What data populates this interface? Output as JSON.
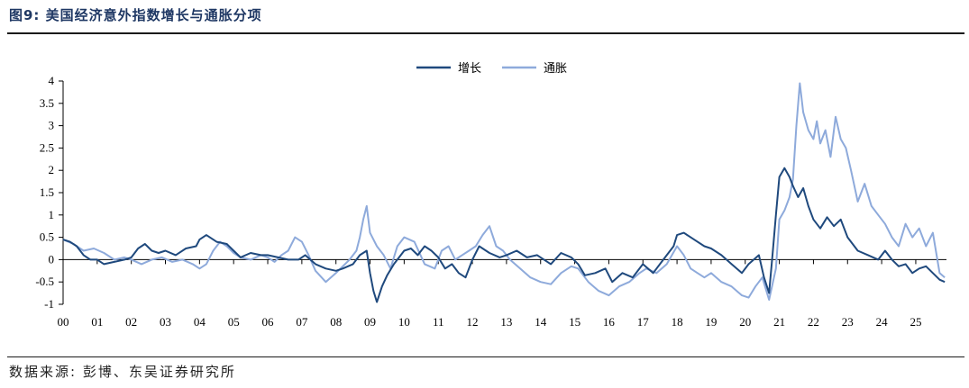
{
  "figure": {
    "title": "图9:  美国经济意外指数增长与通胀分项",
    "source": "数据来源:  彭博、东吴证券研究所"
  },
  "chart_data": {
    "type": "line",
    "title": "",
    "xlabel": "",
    "ylabel": "",
    "x_ticks": [
      "00",
      "01",
      "02",
      "03",
      "04",
      "05",
      "06",
      "07",
      "08",
      "09",
      "10",
      "11",
      "12",
      "13",
      "14",
      "15",
      "16",
      "17",
      "18",
      "19",
      "20",
      "21",
      "22",
      "23",
      "24",
      "25"
    ],
    "y_ticks": [
      "4",
      "3.5",
      "3",
      "2.5",
      "2",
      "1.5",
      "1",
      "0.5",
      "0",
      "-0.5",
      "-1"
    ],
    "xlim": [
      2000.0,
      2025.9
    ],
    "ylim": [
      -1,
      4
    ],
    "grid": false,
    "legend_position": "top-center",
    "series": [
      {
        "name": "增长",
        "color": "#1f497d",
        "x": [
          2000.0,
          2000.2,
          2000.4,
          2000.6,
          2000.8,
          2001.0,
          2001.2,
          2001.5,
          2001.8,
          2002.0,
          2002.2,
          2002.4,
          2002.6,
          2002.8,
          2003.0,
          2003.3,
          2003.6,
          2003.9,
          2004.0,
          2004.2,
          2004.5,
          2004.8,
          2005.0,
          2005.2,
          2005.5,
          2005.8,
          2006.0,
          2006.3,
          2006.6,
          2006.9,
          2007.1,
          2007.4,
          2007.7,
          2008.0,
          2008.2,
          2008.5,
          2008.7,
          2008.9,
          2009.0,
          2009.1,
          2009.2,
          2009.35,
          2009.5,
          2009.7,
          2010.0,
          2010.2,
          2010.4,
          2010.6,
          2010.8,
          2011.0,
          2011.2,
          2011.4,
          2011.6,
          2011.8,
          2012.0,
          2012.2,
          2012.5,
          2012.8,
          2013.0,
          2013.3,
          2013.6,
          2013.9,
          2014.1,
          2014.3,
          2014.6,
          2014.9,
          2015.1,
          2015.3,
          2015.6,
          2015.9,
          2016.1,
          2016.4,
          2016.7,
          2017.0,
          2017.3,
          2017.6,
          2017.9,
          2018.0,
          2018.2,
          2018.5,
          2018.8,
          2019.0,
          2019.3,
          2019.6,
          2019.9,
          2020.1,
          2020.25,
          2020.4,
          2020.55,
          2020.7,
          2020.8,
          2020.9,
          2021.0,
          2021.15,
          2021.3,
          2021.4,
          2021.55,
          2021.7,
          2021.85,
          2022.0,
          2022.2,
          2022.4,
          2022.6,
          2022.8,
          2023.0,
          2023.3,
          2023.6,
          2023.9,
          2024.1,
          2024.3,
          2024.5,
          2024.7,
          2024.9,
          2025.1,
          2025.3,
          2025.5,
          2025.7,
          2025.85
        ],
        "values": [
          0.45,
          0.4,
          0.3,
          0.1,
          0.0,
          0.0,
          -0.1,
          -0.05,
          0.0,
          0.05,
          0.25,
          0.35,
          0.2,
          0.15,
          0.2,
          0.1,
          0.25,
          0.3,
          0.45,
          0.55,
          0.4,
          0.35,
          0.2,
          0.05,
          0.15,
          0.1,
          0.1,
          0.05,
          0.0,
          0.0,
          0.1,
          -0.1,
          -0.2,
          -0.25,
          -0.2,
          -0.1,
          0.1,
          0.2,
          -0.3,
          -0.7,
          -0.95,
          -0.6,
          -0.35,
          -0.1,
          0.2,
          0.25,
          0.1,
          0.3,
          0.2,
          0.05,
          -0.2,
          -0.1,
          -0.3,
          -0.4,
          0.0,
          0.3,
          0.15,
          0.05,
          0.1,
          0.2,
          0.05,
          0.1,
          0.0,
          -0.1,
          0.15,
          0.05,
          -0.1,
          -0.35,
          -0.3,
          -0.2,
          -0.5,
          -0.3,
          -0.4,
          -0.1,
          -0.3,
          0.0,
          0.3,
          0.55,
          0.6,
          0.45,
          0.3,
          0.25,
          0.1,
          -0.1,
          -0.3,
          -0.1,
          0.0,
          0.1,
          -0.4,
          -0.75,
          0.1,
          1.0,
          1.85,
          2.05,
          1.85,
          1.65,
          1.4,
          1.6,
          1.2,
          0.9,
          0.7,
          0.95,
          0.75,
          0.9,
          0.5,
          0.2,
          0.1,
          0.0,
          0.2,
          0.0,
          -0.15,
          -0.1,
          -0.3,
          -0.2,
          -0.15,
          -0.3,
          -0.45,
          -0.5
        ]
      },
      {
        "name": "通胀",
        "color": "#8eaadb",
        "x": [
          2000.0,
          2000.3,
          2000.6,
          2000.9,
          2001.2,
          2001.5,
          2001.8,
          2002.0,
          2002.3,
          2002.6,
          2002.9,
          2003.2,
          2003.5,
          2003.8,
          2004.0,
          2004.2,
          2004.4,
          2004.6,
          2004.8,
          2005.0,
          2005.2,
          2005.5,
          2005.8,
          2006.0,
          2006.2,
          2006.4,
          2006.6,
          2006.8,
          2007.0,
          2007.2,
          2007.4,
          2007.7,
          2008.0,
          2008.2,
          2008.4,
          2008.6,
          2008.7,
          2008.8,
          2008.9,
          2009.0,
          2009.2,
          2009.4,
          2009.6,
          2009.8,
          2010.0,
          2010.3,
          2010.6,
          2010.9,
          2011.1,
          2011.3,
          2011.5,
          2011.7,
          2011.9,
          2012.1,
          2012.3,
          2012.5,
          2012.7,
          2012.9,
          2013.1,
          2013.4,
          2013.7,
          2014.0,
          2014.3,
          2014.6,
          2014.9,
          2015.1,
          2015.4,
          2015.7,
          2016.0,
          2016.3,
          2016.6,
          2016.9,
          2017.1,
          2017.4,
          2017.7,
          2018.0,
          2018.2,
          2018.4,
          2018.6,
          2018.8,
          2019.0,
          2019.3,
          2019.6,
          2019.9,
          2020.1,
          2020.3,
          2020.5,
          2020.7,
          2020.9,
          2021.0,
          2021.15,
          2021.3,
          2021.4,
          2021.5,
          2021.6,
          2021.7,
          2021.85,
          2022.0,
          2022.1,
          2022.2,
          2022.35,
          2022.5,
          2022.65,
          2022.8,
          2022.95,
          2023.1,
          2023.3,
          2023.5,
          2023.7,
          2023.9,
          2024.1,
          2024.3,
          2024.5,
          2024.7,
          2024.9,
          2025.1,
          2025.3,
          2025.5,
          2025.7,
          2025.85
        ],
        "values": [
          0.45,
          0.35,
          0.2,
          0.25,
          0.15,
          0.0,
          0.05,
          0.0,
          -0.1,
          0.0,
          0.05,
          -0.05,
          0.0,
          -0.1,
          -0.2,
          -0.1,
          0.2,
          0.4,
          0.3,
          0.15,
          0.05,
          0.0,
          0.1,
          0.05,
          -0.05,
          0.1,
          0.2,
          0.5,
          0.4,
          0.1,
          -0.25,
          -0.5,
          -0.3,
          -0.15,
          0.0,
          0.2,
          0.5,
          0.9,
          1.2,
          0.6,
          0.3,
          0.1,
          -0.2,
          0.3,
          0.5,
          0.4,
          -0.1,
          -0.2,
          0.2,
          0.3,
          0.0,
          0.1,
          0.2,
          0.3,
          0.55,
          0.75,
          0.3,
          0.2,
          0.0,
          -0.2,
          -0.4,
          -0.5,
          -0.55,
          -0.3,
          -0.15,
          -0.2,
          -0.5,
          -0.7,
          -0.8,
          -0.6,
          -0.5,
          -0.3,
          -0.2,
          -0.3,
          -0.1,
          0.3,
          0.1,
          -0.2,
          -0.3,
          -0.4,
          -0.3,
          -0.5,
          -0.6,
          -0.8,
          -0.85,
          -0.6,
          -0.4,
          -0.9,
          -0.2,
          0.9,
          1.1,
          1.4,
          1.8,
          3.0,
          3.95,
          3.3,
          2.9,
          2.7,
          3.1,
          2.6,
          2.9,
          2.3,
          3.2,
          2.7,
          2.5,
          2.0,
          1.3,
          1.7,
          1.2,
          1.0,
          0.8,
          0.5,
          0.3,
          0.8,
          0.5,
          0.7,
          0.3,
          0.6,
          -0.3,
          -0.4
        ]
      }
    ]
  }
}
